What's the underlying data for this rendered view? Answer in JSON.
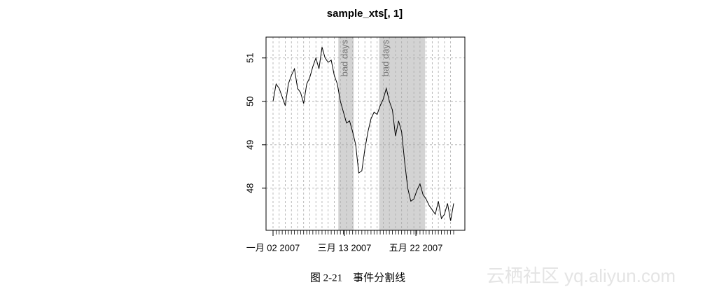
{
  "chart_data": {
    "type": "line",
    "title": "sample_xts[, 1]",
    "x": [
      "2007-01-02",
      "2007-01-05",
      "2007-01-08",
      "2007-01-11",
      "2007-01-14",
      "2007-01-17",
      "2007-01-20",
      "2007-01-23",
      "2007-01-26",
      "2007-01-29",
      "2007-02-01",
      "2007-02-04",
      "2007-02-07",
      "2007-02-10",
      "2007-02-13",
      "2007-02-16",
      "2007-02-19",
      "2007-02-22",
      "2007-02-25",
      "2007-02-28",
      "2007-03-03",
      "2007-03-06",
      "2007-03-09",
      "2007-03-12",
      "2007-03-15",
      "2007-03-18",
      "2007-03-21",
      "2007-03-24",
      "2007-03-27",
      "2007-03-30",
      "2007-04-02",
      "2007-04-05",
      "2007-04-08",
      "2007-04-11",
      "2007-04-14",
      "2007-04-17",
      "2007-04-20",
      "2007-04-23",
      "2007-04-26",
      "2007-04-29",
      "2007-05-02",
      "2007-05-05",
      "2007-05-08",
      "2007-05-11",
      "2007-05-14",
      "2007-05-17",
      "2007-05-20",
      "2007-05-23",
      "2007-05-26",
      "2007-05-29",
      "2007-06-01",
      "2007-06-04",
      "2007-06-07",
      "2007-06-10",
      "2007-06-13",
      "2007-06-16",
      "2007-06-19",
      "2007-06-22",
      "2007-06-25",
      "2007-06-28"
    ],
    "series": [
      {
        "name": "sample_xts[, 1]",
        "color": "#000000",
        "values": [
          50.0,
          50.4,
          50.3,
          50.1,
          49.9,
          50.4,
          50.6,
          50.75,
          50.3,
          50.2,
          49.95,
          50.4,
          50.55,
          50.8,
          51.0,
          50.75,
          51.25,
          51.0,
          50.9,
          50.95,
          50.6,
          50.4,
          50.0,
          49.75,
          49.5,
          49.55,
          49.3,
          49.0,
          48.35,
          48.4,
          48.9,
          49.3,
          49.6,
          49.75,
          49.7,
          49.9,
          50.05,
          50.3,
          50.0,
          49.8,
          49.2,
          49.55,
          49.3,
          48.6,
          48.0,
          47.7,
          47.75,
          47.95,
          48.1,
          47.85,
          47.75,
          47.6,
          47.5,
          47.4,
          47.7,
          47.3,
          47.4,
          47.65,
          47.25,
          47.65
        ]
      }
    ],
    "xlim": [
      "2007-01-02",
      "2007-06-28"
    ],
    "xticks": [
      {
        "value": "2007-01-02",
        "label": "一月 02 2007"
      },
      {
        "value": "2007-03-13",
        "label": "三月 13 2007"
      },
      {
        "value": "2007-05-22",
        "label": "五月 22 2007"
      }
    ],
    "ylim": [
      47.03,
      51.48
    ],
    "yticks": [
      48,
      49,
      50,
      51
    ],
    "grid": true,
    "events": [
      {
        "label": "bad days",
        "start": "2007-03-07",
        "end": "2007-03-22"
      },
      {
        "label": "bad days",
        "start": "2007-04-16",
        "end": "2007-05-31"
      }
    ]
  },
  "caption": "图 2-21　事件分割线",
  "watermark": "云栖社区 yq.aliyun.com"
}
